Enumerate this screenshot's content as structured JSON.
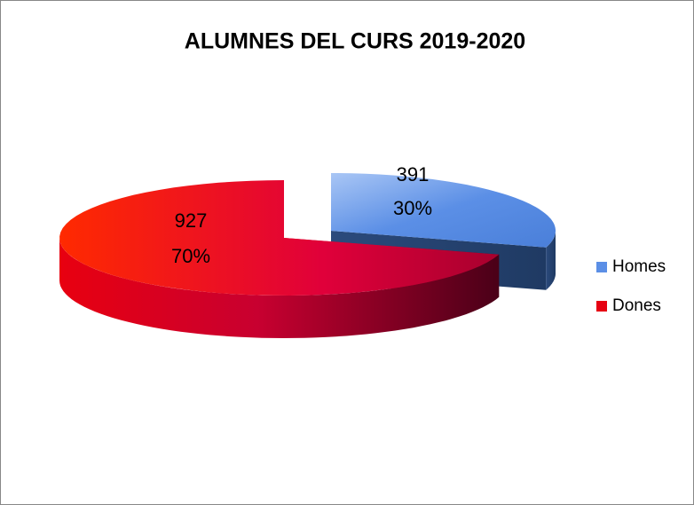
{
  "chart_data": {
    "type": "pie3d",
    "title": "ALUMNES DEL CURS 2019-2020",
    "categories": [
      "Homes",
      "Dones"
    ],
    "values": [
      391,
      927
    ],
    "percent_labels": [
      "30%",
      "70%"
    ],
    "colors": [
      "#5b8fe6",
      "#e60012"
    ],
    "legend": "right"
  }
}
